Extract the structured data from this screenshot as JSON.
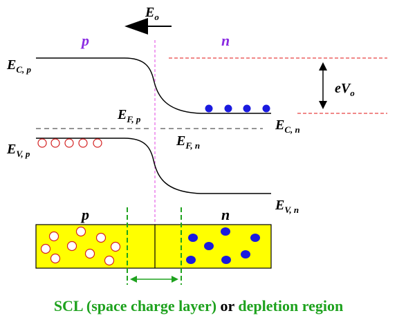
{
  "field": {
    "symbol": "E",
    "sub": "o"
  },
  "regions": {
    "p": "p",
    "n": "n"
  },
  "bands": {
    "ec_p": {
      "main": "E",
      "sub": "C, p"
    },
    "ec_n": {
      "main": "E",
      "sub": "C, n"
    },
    "ev_p": {
      "main": "E",
      "sub": "V, p"
    },
    "ev_n": {
      "main": "E",
      "sub": "V, n"
    },
    "ef_p": {
      "main": "E",
      "sub": "F, p"
    },
    "ef_n": {
      "main": "E",
      "sub": "F, n"
    }
  },
  "barrier": {
    "main": "eV",
    "sub": "o"
  },
  "caption": {
    "part1": "SCL (space charge layer)",
    "part2": "or",
    "part3": "depletion region"
  },
  "colors": {
    "electron": "#1a1adf",
    "hole": "#d42020",
    "box_fill": "#ffff00",
    "scl": "#1ea21e",
    "junction": "#e040e0",
    "barrier_line": "#e01010",
    "region_label": "#8a2be2"
  }
}
